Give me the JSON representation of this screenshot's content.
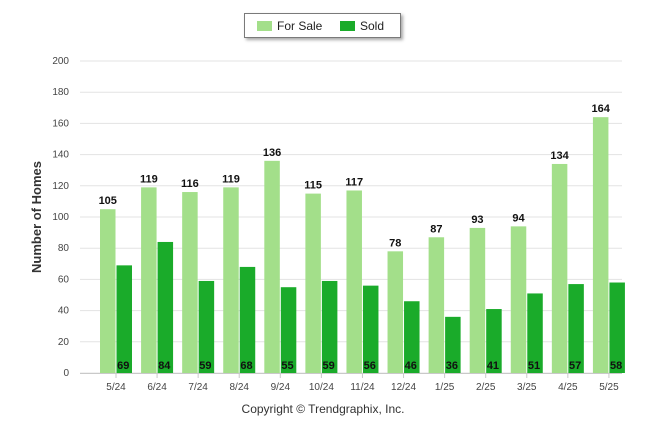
{
  "chart_data": {
    "type": "bar",
    "title": "",
    "xlabel": "",
    "ylabel": "Number of Homes",
    "ylim": [
      0,
      200
    ],
    "yticks": [
      0,
      20,
      40,
      60,
      80,
      100,
      120,
      140,
      160,
      180,
      200
    ],
    "grid": true,
    "legend_position": "top-center",
    "categories": [
      "5/24",
      "6/24",
      "7/24",
      "8/24",
      "9/24",
      "10/24",
      "11/24",
      "12/24",
      "1/25",
      "2/25",
      "3/25",
      "4/25",
      "5/25"
    ],
    "series": [
      {
        "name": "For Sale",
        "color": "#a3df8a",
        "values": [
          105,
          119,
          116,
          119,
          136,
          115,
          117,
          78,
          87,
          93,
          94,
          134,
          164
        ]
      },
      {
        "name": "Sold",
        "color": "#1aab2a",
        "values": [
          69,
          84,
          59,
          68,
          55,
          59,
          56,
          46,
          36,
          41,
          51,
          57,
          58
        ]
      }
    ]
  },
  "footer": {
    "copyright": "Copyright © Trendgraphix, Inc."
  }
}
